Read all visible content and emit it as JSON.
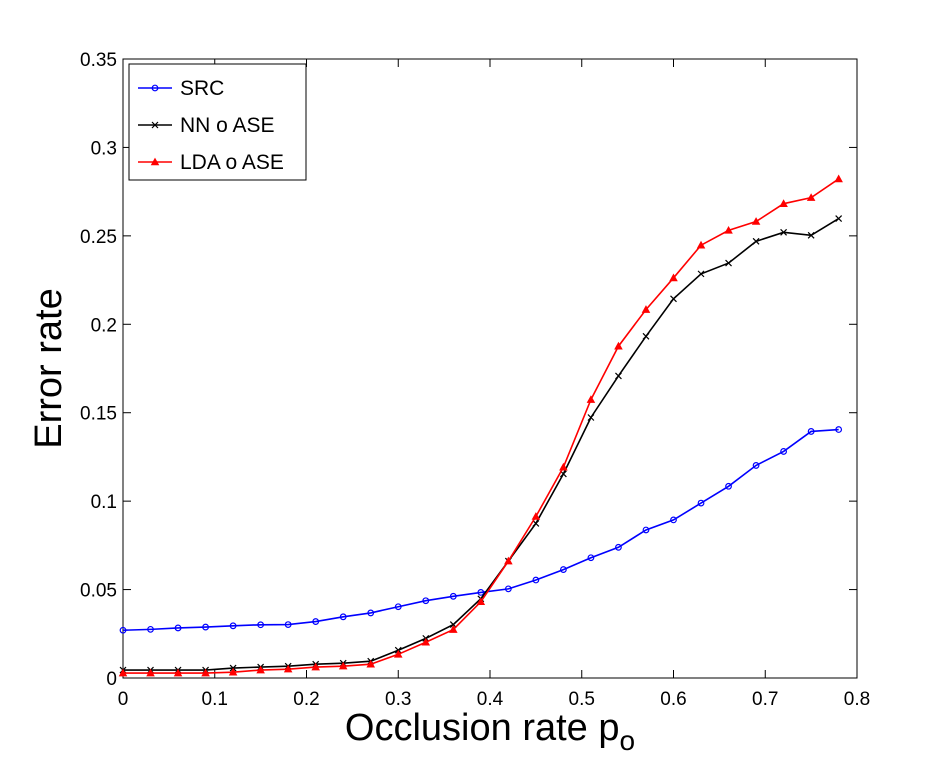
{
  "chart_data": {
    "type": "line",
    "title": "",
    "xlabel": "Occlusion rate p",
    "xlabel_subscript": "o",
    "ylabel": "Error rate",
    "xlim": [
      0,
      0.8
    ],
    "ylim": [
      0,
      0.35
    ],
    "xticks": [
      0,
      0.1,
      0.2,
      0.3,
      0.4,
      0.5,
      0.6,
      0.7,
      0.8
    ],
    "xtick_labels": [
      "0",
      "0.1",
      "0.2",
      "0.3",
      "0.4",
      "0.5",
      "0.6",
      "0.7",
      "0.8"
    ],
    "yticks": [
      0,
      0.05,
      0.1,
      0.15,
      0.2,
      0.25,
      0.3,
      0.35
    ],
    "ytick_labels": [
      "0",
      "0.05",
      "0.1",
      "0.15",
      "0.2",
      "0.25",
      "0.3",
      "0.35"
    ],
    "grid": false,
    "legend_position": "top-left",
    "x": [
      0,
      0.03,
      0.06,
      0.09,
      0.12,
      0.15,
      0.18,
      0.21,
      0.24,
      0.27,
      0.3,
      0.33,
      0.36,
      0.39,
      0.42,
      0.45,
      0.48,
      0.51,
      0.54,
      0.57,
      0.6,
      0.63,
      0.66,
      0.69,
      0.72,
      0.75,
      0.78
    ],
    "series": [
      {
        "name": "SRC",
        "color": "#0000ff",
        "marker": "circle",
        "values": [
          0.027,
          0.0275,
          0.0283,
          0.0288,
          0.0295,
          0.0301,
          0.0302,
          0.0319,
          0.0346,
          0.0368,
          0.0403,
          0.0437,
          0.0462,
          0.0484,
          0.0504,
          0.0554,
          0.0613,
          0.068,
          0.0739,
          0.0837,
          0.0894,
          0.0989,
          0.1084,
          0.1202,
          0.1281,
          0.1394,
          0.1405
        ]
      },
      {
        "name": "NN o ASE",
        "color": "#000000",
        "marker": "x",
        "values": [
          0.0045,
          0.0045,
          0.0045,
          0.0045,
          0.0056,
          0.0062,
          0.0067,
          0.0078,
          0.0084,
          0.0095,
          0.0157,
          0.0224,
          0.0302,
          0.0448,
          0.0661,
          0.0874,
          0.1154,
          0.1473,
          0.1708,
          0.1932,
          0.2144,
          0.2285,
          0.2346,
          0.2469,
          0.252,
          0.2503,
          0.2598
        ]
      },
      {
        "name": "LDA o ASE",
        "color": "#ff0000",
        "marker": "triangle",
        "values": [
          0.0028,
          0.0028,
          0.0028,
          0.0028,
          0.0033,
          0.0045,
          0.005,
          0.0062,
          0.0067,
          0.0078,
          0.0134,
          0.0202,
          0.0274,
          0.0431,
          0.0661,
          0.0913,
          0.1192,
          0.1574,
          0.1876,
          0.2083,
          0.2262,
          0.2447,
          0.2531,
          0.2581,
          0.2682,
          0.2716,
          0.2822
        ]
      }
    ]
  }
}
